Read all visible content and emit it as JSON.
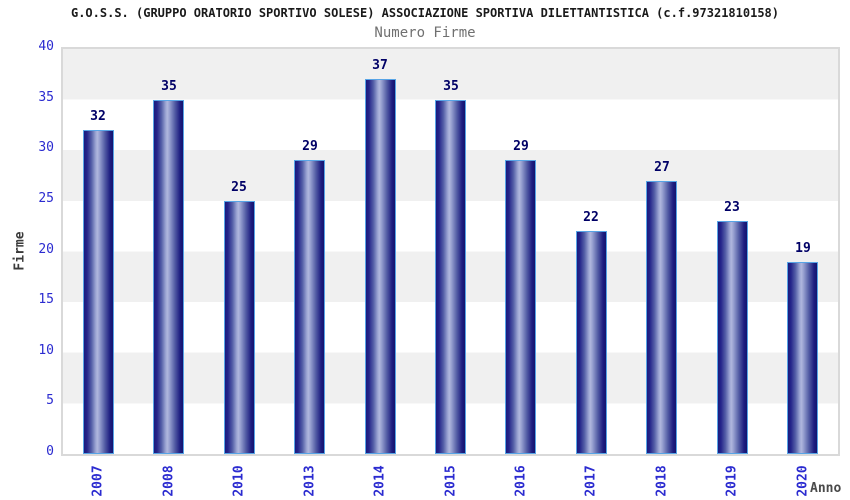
{
  "header": {
    "title": "G.O.S.S. (GRUPPO ORATORIO SPORTIVO SOLESE) ASSOCIAZIONE SPORTIVA DILETTANTISTICA (c.f.97321810158)",
    "subtitle": "Numero Firme"
  },
  "chart_data": {
    "type": "bar",
    "title": "G.O.S.S. (GRUPPO ORATORIO SPORTIVO SOLESE) ASSOCIAZIONE SPORTIVA DILETTANTISTICA (c.f.97321810158)",
    "subtitle": "Numero Firme",
    "categories": [
      "2007",
      "2008",
      "2010",
      "2013",
      "2014",
      "2015",
      "2016",
      "2017",
      "2018",
      "2019",
      "2020"
    ],
    "values": [
      32,
      35,
      25,
      29,
      37,
      35,
      29,
      22,
      27,
      23,
      19
    ],
    "xlabel": "Anno",
    "ylabel": "Firme",
    "ylim": [
      0,
      40
    ],
    "ytick_step": 5,
    "yticks": [
      0,
      5,
      10,
      15,
      20,
      25,
      30,
      35,
      40
    ],
    "grid": "horizontal-alternating-bands",
    "legend": "none",
    "colors": {
      "bar_edge": "#1b1b7e",
      "bar_center": "#b0b7de",
      "bar_outline": "#57a4e6",
      "tick_label": "#2b2bd0",
      "value_label": "#000066",
      "band_gray": "#f0f0f0",
      "band_white": "#ffffff",
      "plot_border": "#d9d9d9",
      "title_color": "#1a1a1a",
      "subtitle_color": "#707070",
      "axis_title_color": "#3a3a3a"
    }
  }
}
